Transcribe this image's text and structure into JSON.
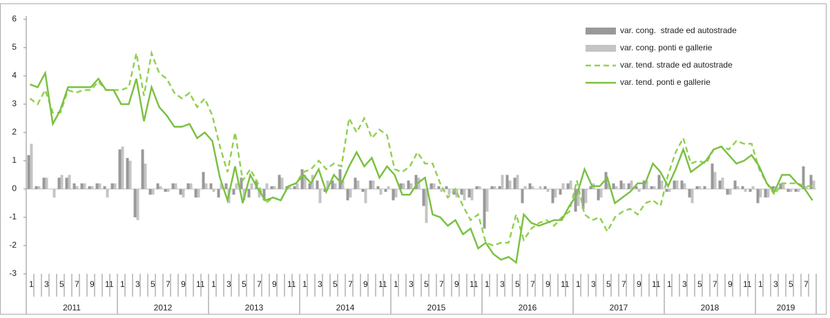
{
  "chart_data": {
    "type": "bar-line",
    "categories": [
      "1",
      null,
      "3",
      null,
      "5",
      null,
      "7",
      null,
      "9",
      null,
      "11",
      null,
      "1",
      null,
      "3",
      null,
      "5",
      null,
      "7",
      null,
      "9",
      null,
      "11",
      null,
      "1",
      null,
      "3",
      null,
      "5",
      null,
      "7",
      null,
      "9",
      null,
      "11",
      null,
      "1",
      null,
      "3",
      null,
      "5",
      null,
      "7",
      null,
      "9",
      null,
      "11",
      null,
      "1",
      null,
      "3",
      null,
      "5",
      null,
      "7",
      null,
      "9",
      null,
      "11",
      null,
      "1",
      null,
      "3",
      null,
      "5",
      null,
      "7",
      null,
      "9",
      null,
      "11",
      null,
      "1",
      null,
      "3",
      null,
      "5",
      null,
      "7",
      null,
      "9",
      null,
      "11",
      null,
      "1",
      null,
      "3",
      null,
      "5",
      null,
      "7",
      null,
      "9",
      null,
      "11",
      null,
      "1",
      null,
      "3",
      null,
      "5",
      null,
      "7",
      null
    ],
    "years": [
      "2011",
      "2012",
      "2013",
      "2014",
      "2015",
      "2016",
      "2017",
      "2018",
      "2019"
    ],
    "ylim": [
      -3,
      6
    ],
    "yticks": [
      -3,
      -2,
      -1,
      0,
      1,
      2,
      3,
      4,
      5,
      6
    ],
    "series": [
      {
        "name": "var. cong.  strade ed autostrade",
        "kind": "bar",
        "color": "#999999",
        "values": [
          1.2,
          0.1,
          0.4,
          0.0,
          0.4,
          0.4,
          0.2,
          0.2,
          0.1,
          0.2,
          0.1,
          0.2,
          1.4,
          1.1,
          -1.0,
          1.4,
          -0.2,
          0.2,
          -0.1,
          0.2,
          -0.2,
          0.2,
          -0.3,
          0.6,
          0.2,
          -0.3,
          0.2,
          -0.2,
          0.4,
          -0.3,
          0.3,
          -0.4,
          0.1,
          0.5,
          0.1,
          0.1,
          0.7,
          0.2,
          0.3,
          -0.1,
          0.3,
          0.7,
          -0.4,
          0.4,
          -0.1,
          0.3,
          0.1,
          -0.1,
          -0.4,
          0.2,
          0.3,
          0.5,
          -0.6,
          0.2,
          0.1,
          0.1,
          -0.2,
          -0.2,
          -0.3,
          0.1,
          -1.4,
          0.1,
          0.1,
          0.5,
          0.4,
          -0.5,
          0.2,
          0.0,
          0.1,
          -0.5,
          -0.2,
          0.2,
          -0.8,
          -0.7,
          0.1,
          -0.4,
          0.6,
          0.2,
          0.3,
          0.2,
          0.1,
          0.3,
          0.1,
          0.5,
          -0.1,
          0.3,
          0.3,
          -0.3,
          0.1,
          0.1,
          0.9,
          0.3,
          -0.2,
          0.3,
          0.1,
          -0.1,
          -0.5,
          -0.3,
          0.1,
          0.2,
          -0.1,
          -0.1,
          0.8,
          0.5
        ]
      },
      {
        "name": "var. cong. ponti e gallerie",
        "kind": "bar",
        "color": "#c4c4c4",
        "values": [
          1.6,
          0.1,
          0.4,
          -0.3,
          0.5,
          0.5,
          0.1,
          0.2,
          0.1,
          0.2,
          -0.3,
          0.2,
          1.5,
          1.0,
          -1.1,
          0.9,
          -0.2,
          0.1,
          -0.1,
          0.2,
          -0.3,
          0.2,
          -0.3,
          0.2,
          -0.1,
          0.2,
          -0.5,
          0.2,
          -0.4,
          0.2,
          -0.3,
          0.2,
          0.1,
          0.4,
          0.1,
          0.2,
          0.5,
          0.5,
          -0.5,
          0.3,
          0.2,
          0.3,
          -0.3,
          0.3,
          -0.5,
          0.3,
          -0.2,
          0.1,
          -0.3,
          0.2,
          0.2,
          0.4,
          -1.2,
          0.2,
          -0.1,
          -0.2,
          -0.3,
          -0.4,
          -0.4,
          0.1,
          -0.8,
          0.1,
          0.5,
          0.3,
          0.5,
          0.1,
          0.1,
          0.1,
          -0.1,
          -0.3,
          0.2,
          0.3,
          -0.6,
          -0.5,
          0.2,
          -0.3,
          0.2,
          0.1,
          0.2,
          0.3,
          -0.1,
          0.3,
          0.1,
          0.3,
          -0.1,
          0.3,
          0.2,
          -0.5,
          0.1,
          0.0,
          0.6,
          0.4,
          -0.2,
          0.1,
          -0.1,
          0.1,
          -0.3,
          -0.3,
          0.1,
          0.2,
          -0.1,
          -0.1,
          0.1,
          0.3
        ]
      },
      {
        "name": "var. tend. strade ed autostrade",
        "kind": "line",
        "dashed": true,
        "color": "#92d050",
        "values": [
          3.2,
          3.0,
          3.5,
          2.7,
          2.7,
          3.5,
          3.4,
          3.5,
          3.5,
          3.8,
          3.5,
          3.5,
          3.5,
          3.6,
          4.8,
          3.3,
          4.8,
          4.1,
          3.9,
          3.4,
          3.2,
          3.4,
          2.9,
          3.2,
          2.6,
          1.5,
          0.6,
          2.0,
          0.3,
          0.7,
          0.2,
          -0.5,
          -0.3,
          -0.4,
          0.1,
          0.2,
          0.6,
          0.7,
          1.0,
          0.7,
          0.9,
          0.8,
          2.5,
          2.0,
          2.5,
          1.8,
          2.1,
          1.9,
          0.7,
          0.6,
          0.8,
          1.3,
          0.9,
          0.9,
          0.2,
          -0.3,
          0.0,
          -0.6,
          -1.1,
          -0.9,
          -1.9,
          -2.0,
          -1.9,
          -1.9,
          -0.9,
          -1.8,
          -1.4,
          -1.2,
          -1.1,
          -1.3,
          -1.0,
          -0.8,
          0.3,
          -0.9,
          -1.1,
          -1.0,
          -1.5,
          -1.0,
          -0.8,
          -0.7,
          -0.9,
          -0.5,
          -0.4,
          -0.6,
          0.5,
          1.3,
          1.8,
          0.9,
          1.0,
          0.9,
          1.4,
          1.5,
          1.4,
          1.7,
          1.6,
          1.6,
          0.7,
          0.2,
          -0.2,
          0.2,
          0.2,
          0.2,
          0.1,
          0.1
        ]
      },
      {
        "name": "var. tend. ponti e gallerie",
        "kind": "line",
        "dashed": false,
        "color": "#7ac142",
        "values": [
          3.7,
          3.6,
          4.1,
          2.3,
          2.8,
          3.6,
          3.6,
          3.6,
          3.6,
          3.9,
          3.5,
          3.5,
          3.0,
          3.0,
          3.9,
          2.4,
          3.6,
          2.9,
          2.6,
          2.2,
          2.2,
          2.3,
          1.8,
          2.0,
          1.7,
          0.4,
          -0.4,
          0.8,
          -0.5,
          0.5,
          0.0,
          -0.4,
          -0.3,
          -0.4,
          0.1,
          0.2,
          0.5,
          0.2,
          0.7,
          -0.1,
          0.5,
          0.2,
          0.8,
          1.3,
          0.8,
          1.1,
          0.4,
          0.8,
          0.5,
          -0.2,
          -0.2,
          0.2,
          0.4,
          -0.9,
          -1.0,
          -1.3,
          -1.1,
          -1.6,
          -1.4,
          -2.1,
          -1.9,
          -2.3,
          -2.5,
          -2.4,
          -2.6,
          -0.9,
          -1.2,
          -1.3,
          -1.2,
          -1.1,
          -1.1,
          -0.6,
          -0.2,
          0.7,
          0.1,
          0.1,
          0.4,
          -0.5,
          -0.3,
          -0.1,
          0.2,
          0.2,
          0.9,
          0.6,
          0.1,
          0.7,
          1.4,
          0.6,
          0.8,
          1.0,
          1.4,
          1.5,
          1.2,
          0.9,
          1.0,
          1.2,
          0.8,
          0.2,
          -0.1,
          0.5,
          0.5,
          0.2,
          0.0,
          -0.4
        ]
      }
    ],
    "legend": "top-right"
  }
}
